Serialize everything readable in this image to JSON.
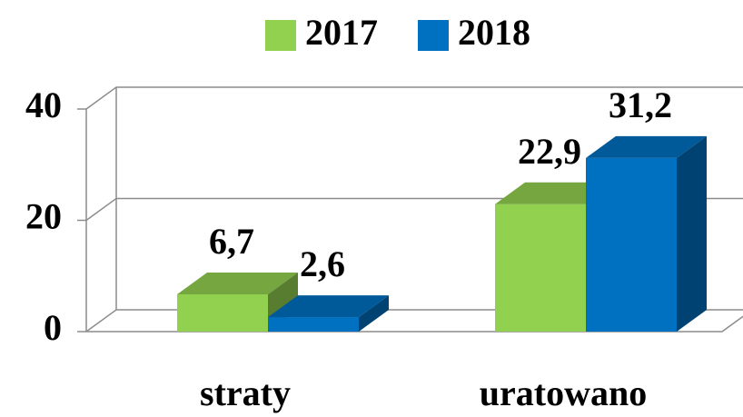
{
  "chart_data": {
    "type": "bar3d",
    "categories": [
      "straty",
      "uratowano"
    ],
    "series": [
      {
        "name": "2017",
        "color": "#92d050",
        "values": [
          6.7,
          22.9
        ],
        "value_labels": [
          "6,7",
          "22,9"
        ]
      },
      {
        "name": "2018",
        "color": "#0070c0",
        "values": [
          2.6,
          31.2
        ],
        "value_labels": [
          "2,6",
          "31,2"
        ]
      }
    ],
    "ylim": [
      0,
      40
    ],
    "yticks": [
      0,
      20,
      40
    ],
    "grid": true,
    "legend": "top"
  }
}
